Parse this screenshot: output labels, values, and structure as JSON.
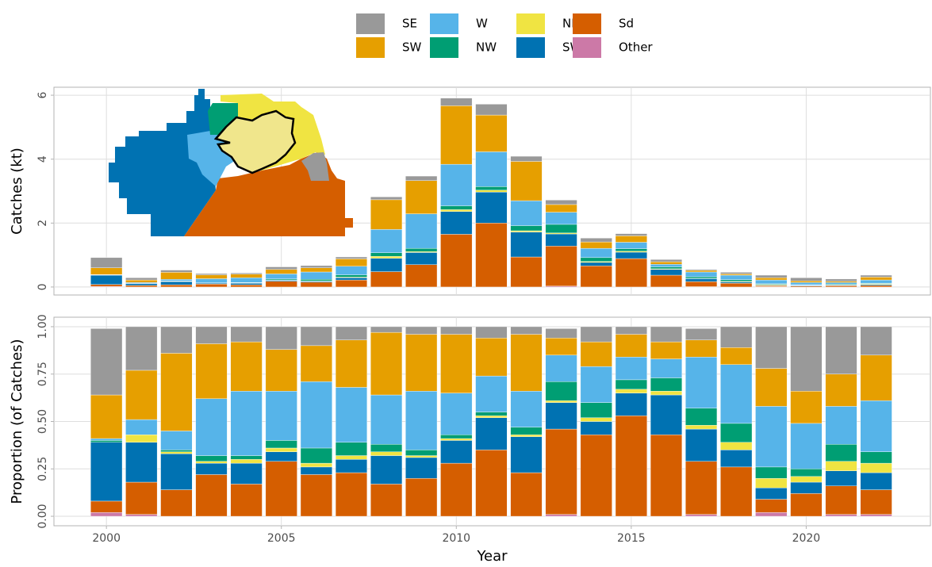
{
  "chart_data": [
    {
      "type": "bar",
      "stacked": true,
      "ylabel": "Catches (kt)",
      "x": [
        2000,
        2001,
        2002,
        2003,
        2004,
        2005,
        2006,
        2007,
        2008,
        2009,
        2010,
        2011,
        2012,
        2013,
        2014,
        2015,
        2016,
        2017,
        2018,
        2019,
        2020,
        2021,
        2022
      ],
      "xlim": [
        1998.5,
        2023.55
      ],
      "xticks": [
        2000,
        2005,
        2010,
        2015,
        2020
      ],
      "ylim": [
        -0.25,
        6.25
      ],
      "yticks": [
        0,
        2,
        4,
        6
      ],
      "grid": true,
      "series": [
        {
          "name": "SE",
          "color": "#999999",
          "values": [
            0.32,
            0.07,
            0.07,
            0.04,
            0.04,
            0.08,
            0.07,
            0.06,
            0.09,
            0.14,
            0.24,
            0.34,
            0.16,
            0.14,
            0.12,
            0.07,
            0.07,
            0.03,
            0.05,
            0.08,
            0.1,
            0.07,
            0.06
          ]
        },
        {
          "name": "SW",
          "color": "#E69F00",
          "values": [
            0.21,
            0.08,
            0.22,
            0.12,
            0.11,
            0.14,
            0.13,
            0.23,
            0.93,
            1.04,
            1.83,
            1.15,
            1.23,
            0.24,
            0.2,
            0.2,
            0.08,
            0.05,
            0.04,
            0.07,
            0.05,
            0.04,
            0.09
          ]
        },
        {
          "name": "W",
          "color": "#56B4E9",
          "values": [
            0.01,
            0.02,
            0.05,
            0.13,
            0.15,
            0.16,
            0.23,
            0.27,
            0.73,
            1.08,
            1.3,
            1.09,
            0.78,
            0.38,
            0.29,
            0.2,
            0.08,
            0.15,
            0.14,
            0.12,
            0.07,
            0.05,
            0.1
          ]
        },
        {
          "name": "NW",
          "color": "#009E73",
          "values": [
            0.01,
            0,
            0.01,
            0.01,
            0.01,
            0.03,
            0.05,
            0.07,
            0.11,
            0.1,
            0.12,
            0.11,
            0.16,
            0.27,
            0.12,
            0.08,
            0.06,
            0.05,
            0.05,
            0.02,
            0.01,
            0.02,
            0.02
          ]
        },
        {
          "name": "NE",
          "color": "#F0E442",
          "values": [
            0,
            0.01,
            0.01,
            0,
            0.01,
            0.01,
            0.01,
            0.02,
            0.06,
            0.03,
            0.06,
            0.06,
            0.04,
            0.03,
            0.03,
            0.03,
            0.02,
            0.01,
            0.02,
            0.02,
            0.01,
            0.01,
            0.02
          ]
        },
        {
          "name": "SWd",
          "color": "#0072B2",
          "values": [
            0.29,
            0.06,
            0.1,
            0.03,
            0.05,
            0.03,
            0.03,
            0.07,
            0.42,
            0.38,
            0.71,
            0.97,
            0.78,
            0.38,
            0.11,
            0.2,
            0.18,
            0.09,
            0.04,
            0.02,
            0.02,
            0.02,
            0.03
          ]
        },
        {
          "name": "Sd",
          "color": "#D55E00",
          "values": [
            0.06,
            0.05,
            0.07,
            0.09,
            0.07,
            0.18,
            0.15,
            0.22,
            0.48,
            0.7,
            1.65,
            2.0,
            0.94,
            1.25,
            0.66,
            0.89,
            0.37,
            0.16,
            0.12,
            0.03,
            0.03,
            0.04,
            0.05
          ]
        },
        {
          "name": "Other",
          "color": "#CC79A7",
          "values": [
            0.02,
            0,
            0,
            0,
            0,
            0,
            0,
            0,
            0,
            0,
            0,
            0,
            0,
            0.03,
            0,
            0,
            0,
            0.01,
            0,
            0.01,
            0,
            0,
            0
          ]
        }
      ]
    },
    {
      "type": "bar",
      "stacked": true,
      "ylabel": "Proportion (of Catches)",
      "xlabel": "Year",
      "x": [
        2000,
        2001,
        2002,
        2003,
        2004,
        2005,
        2006,
        2007,
        2008,
        2009,
        2010,
        2011,
        2012,
        2013,
        2014,
        2015,
        2016,
        2017,
        2018,
        2019,
        2020,
        2021,
        2022
      ],
      "xlim": [
        1998.5,
        2023.55
      ],
      "xticks": [
        2000,
        2005,
        2010,
        2015,
        2020
      ],
      "ylim": [
        -0.05,
        1.05
      ],
      "yticks": [
        {
          "value": 0,
          "label": "0.00"
        },
        {
          "value": 0.25,
          "label": "0.25"
        },
        {
          "value": 0.5,
          "label": "0.50"
        },
        {
          "value": 0.75,
          "label": "0.75"
        },
        {
          "value": 1,
          "label": "1.00"
        }
      ],
      "grid": true,
      "series": [
        {
          "values": [
            0.35,
            0.23,
            0.14,
            0.09,
            0.08,
            0.12,
            0.1,
            0.07,
            0.03,
            0.04,
            0.04,
            0.06,
            0.04,
            0.05,
            0.08,
            0.04,
            0.08,
            0.06,
            0.11,
            0.22,
            0.34,
            0.25,
            0.15
          ]
        },
        {
          "values": [
            0.23,
            0.26,
            0.41,
            0.29,
            0.26,
            0.22,
            0.19,
            0.25,
            0.33,
            0.3,
            0.31,
            0.2,
            0.3,
            0.09,
            0.13,
            0.12,
            0.09,
            0.09,
            0.09,
            0.2,
            0.17,
            0.17,
            0.24
          ]
        },
        {
          "values": [
            0.01,
            0.08,
            0.1,
            0.3,
            0.34,
            0.26,
            0.35,
            0.29,
            0.26,
            0.31,
            0.22,
            0.19,
            0.19,
            0.14,
            0.19,
            0.12,
            0.1,
            0.27,
            0.31,
            0.32,
            0.24,
            0.2,
            0.27
          ]
        },
        {
          "values": [
            0.01,
            0,
            0.01,
            0.03,
            0.02,
            0.04,
            0.08,
            0.07,
            0.04,
            0.03,
            0.02,
            0.02,
            0.04,
            0.1,
            0.08,
            0.05,
            0.07,
            0.09,
            0.1,
            0.06,
            0.04,
            0.09,
            0.06
          ]
        },
        {
          "values": [
            0,
            0.04,
            0.01,
            0.01,
            0.02,
            0.02,
            0.02,
            0.02,
            0.02,
            0.01,
            0.01,
            0.01,
            0.01,
            0.01,
            0.02,
            0.02,
            0.02,
            0.02,
            0.04,
            0.05,
            0.03,
            0.05,
            0.05
          ]
        },
        {
          "values": [
            0.31,
            0.21,
            0.19,
            0.06,
            0.11,
            0.05,
            0.04,
            0.07,
            0.15,
            0.11,
            0.12,
            0.17,
            0.19,
            0.14,
            0.07,
            0.12,
            0.21,
            0.17,
            0.09,
            0.06,
            0.06,
            0.08,
            0.09
          ]
        },
        {
          "values": [
            0.06,
            0.17,
            0.14,
            0.22,
            0.17,
            0.29,
            0.22,
            0.23,
            0.17,
            0.2,
            0.28,
            0.35,
            0.23,
            0.45,
            0.43,
            0.53,
            0.43,
            0.28,
            0.26,
            0.07,
            0.12,
            0.15,
            0.13
          ]
        },
        {
          "values": [
            0.02,
            0.01,
            0,
            0,
            0,
            0,
            0,
            0,
            0,
            0,
            0,
            0,
            0,
            0.01,
            0,
            0,
            0,
            0.01,
            0,
            0.02,
            0,
            0.01,
            0.01
          ]
        }
      ]
    }
  ]
}
